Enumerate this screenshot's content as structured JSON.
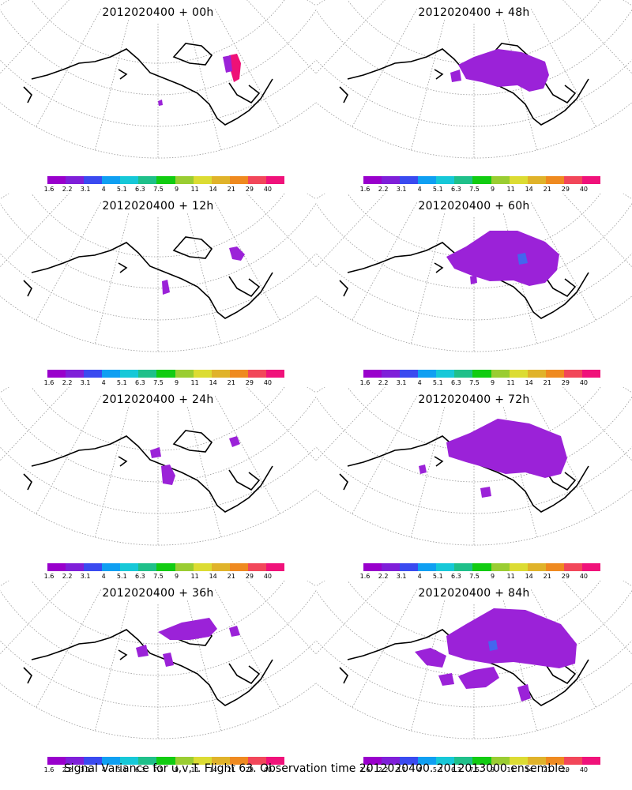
{
  "colors": {
    "coast": "#000000",
    "grid": "#999999",
    "legend": [
      "#9900cc",
      "#7f1fd9",
      "#3a4af0",
      "#0f9ff2",
      "#16c8d8",
      "#1fc08a",
      "#12cc12",
      "#9acd32",
      "#dcdc33",
      "#e0b32a",
      "#ef8a20",
      "#f2475a",
      "#f0127a"
    ],
    "variance_low": "#9b22d8",
    "variance_mid": "#4466ee",
    "variance_high": "#ee1177"
  },
  "legend": {
    "labels": [
      "1.6",
      "2.2",
      "3.1",
      "4",
      "5.1",
      "6.3",
      "7.5",
      "9",
      "11",
      "14",
      "21",
      "29",
      "40"
    ]
  },
  "panels": [
    {
      "title": "2012020400 + 00h"
    },
    {
      "title": "2012020400 + 48h"
    },
    {
      "title": "2012020400 + 12h"
    },
    {
      "title": "2012020400 + 60h"
    },
    {
      "title": "2012020400 + 24h"
    },
    {
      "title": "2012020400 + 72h"
    },
    {
      "title": "2012020400 + 36h"
    },
    {
      "title": "2012020400 + 84h"
    }
  ],
  "caption": "Signal Variance for u,v,T. Flight 63. Observation time 2012020400. 2012013000 ensemble."
}
